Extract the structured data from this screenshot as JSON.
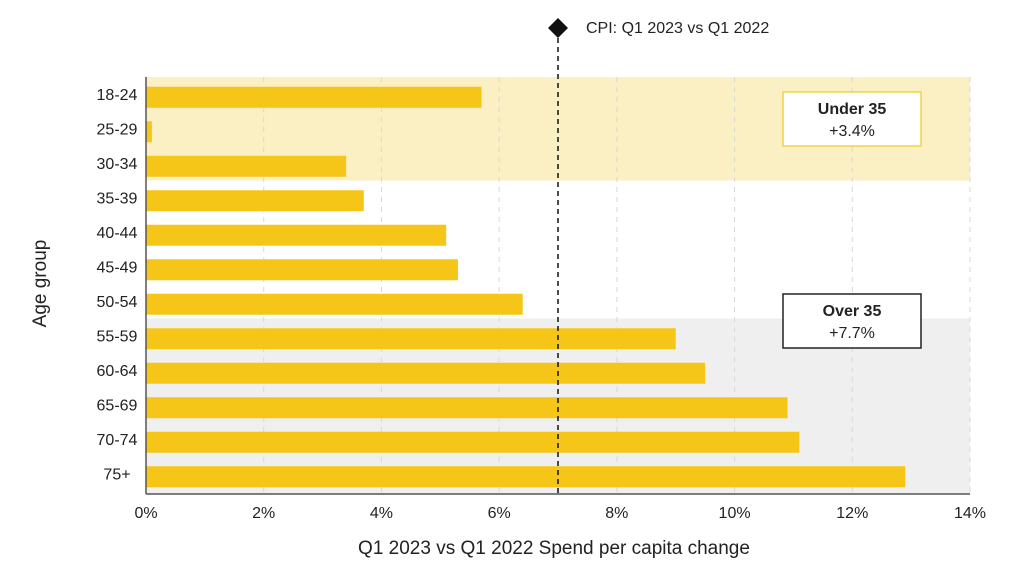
{
  "chart_data": {
    "type": "bar",
    "orientation": "horizontal",
    "categories": [
      "18-24",
      "25-29",
      "30-34",
      "35-39",
      "40-44",
      "45-49",
      "50-54",
      "55-59",
      "60-64",
      "65-69",
      "70-74",
      "75+"
    ],
    "values": [
      5.7,
      0.1,
      3.4,
      3.7,
      5.1,
      5.3,
      6.4,
      9.0,
      9.5,
      10.9,
      11.1,
      12.9
    ],
    "xlim": [
      0,
      14
    ],
    "x_ticks": [
      0,
      2,
      4,
      6,
      8,
      10,
      12,
      14
    ],
    "x_tick_labels": [
      "0%",
      "2%",
      "4%",
      "6%",
      "8%",
      "10%",
      "12%",
      "14%"
    ],
    "xlabel": "Q1 2023 vs Q1 2022 Spend per capita change",
    "ylabel": "Age group",
    "grid": "vertical dashed",
    "reference_line": {
      "value": 7.0,
      "label": "CPI: Q1 2023 vs Q1 2022"
    },
    "groups": [
      {
        "title": "Under 35",
        "value": "+3.4%",
        "from": "18-24",
        "to": "30-34",
        "shade": "#fbefc4",
        "box_border": "#f2d24a"
      },
      {
        "title": "Over 35",
        "value": "+7.7%",
        "from": "55-59",
        "to": "75+",
        "shade": "#efefef",
        "box_border": "#222222"
      }
    ],
    "colors": {
      "bar": "#f5c518",
      "reference": "#111111",
      "grid": "#d8d8d8",
      "axis": "#555555"
    }
  }
}
